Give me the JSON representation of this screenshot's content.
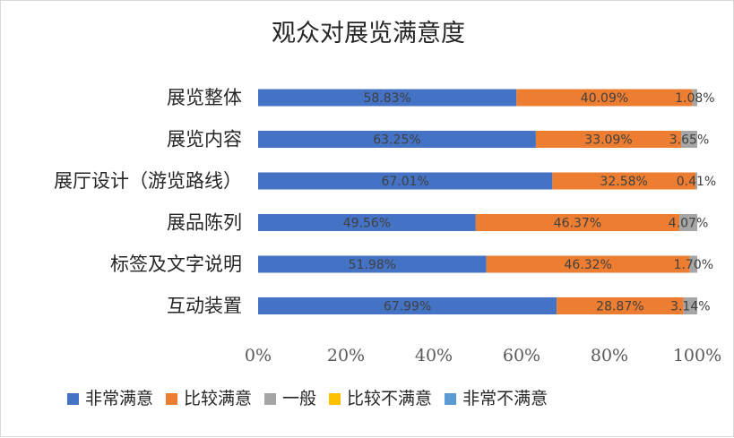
{
  "chart_data": {
    "type": "bar",
    "orientation": "horizontal",
    "stacked": "percent",
    "title": "观众对展览满意度",
    "categories": [
      "展览整体",
      "展览内容",
      "展厅设计（游览路线）",
      "展品陈列",
      "标签及文字说明",
      "互动装置"
    ],
    "series": [
      {
        "name": "非常满意",
        "color": "#4472C4",
        "values": [
          58.83,
          63.25,
          67.01,
          49.56,
          51.98,
          67.99
        ],
        "labels": [
          "58.83%",
          "63.25%",
          "67.01%",
          "49.56%",
          "51.98%",
          "67.99%"
        ]
      },
      {
        "name": "比较满意",
        "color": "#ED7D31",
        "values": [
          40.09,
          33.09,
          32.58,
          46.37,
          46.32,
          28.87
        ],
        "labels": [
          "40.09%",
          "33.09%",
          "32.58%",
          "46.37%",
          "46.32%",
          "28.87%"
        ]
      },
      {
        "name": "一般",
        "color": "#A5A5A5",
        "values": [
          1.08,
          3.65,
          0.41,
          4.07,
          1.7,
          3.14
        ],
        "labels": [
          "1.08%",
          "3.65%",
          "0.41%",
          "4.07%",
          "1.70%",
          "3.14%"
        ]
      },
      {
        "name": "比较不满意",
        "color": "#FFC000",
        "values": [
          0,
          0,
          0,
          0,
          0,
          0
        ],
        "labels": []
      },
      {
        "name": "非常不满意",
        "color": "#5B9BD5",
        "values": [
          0,
          0,
          0,
          0,
          0,
          0
        ],
        "labels": []
      }
    ],
    "xlim": [
      0,
      100
    ],
    "xticks": [
      "0%",
      "20%",
      "40%",
      "60%",
      "80%",
      "100%"
    ],
    "grid": false,
    "legend_position": "bottom"
  }
}
